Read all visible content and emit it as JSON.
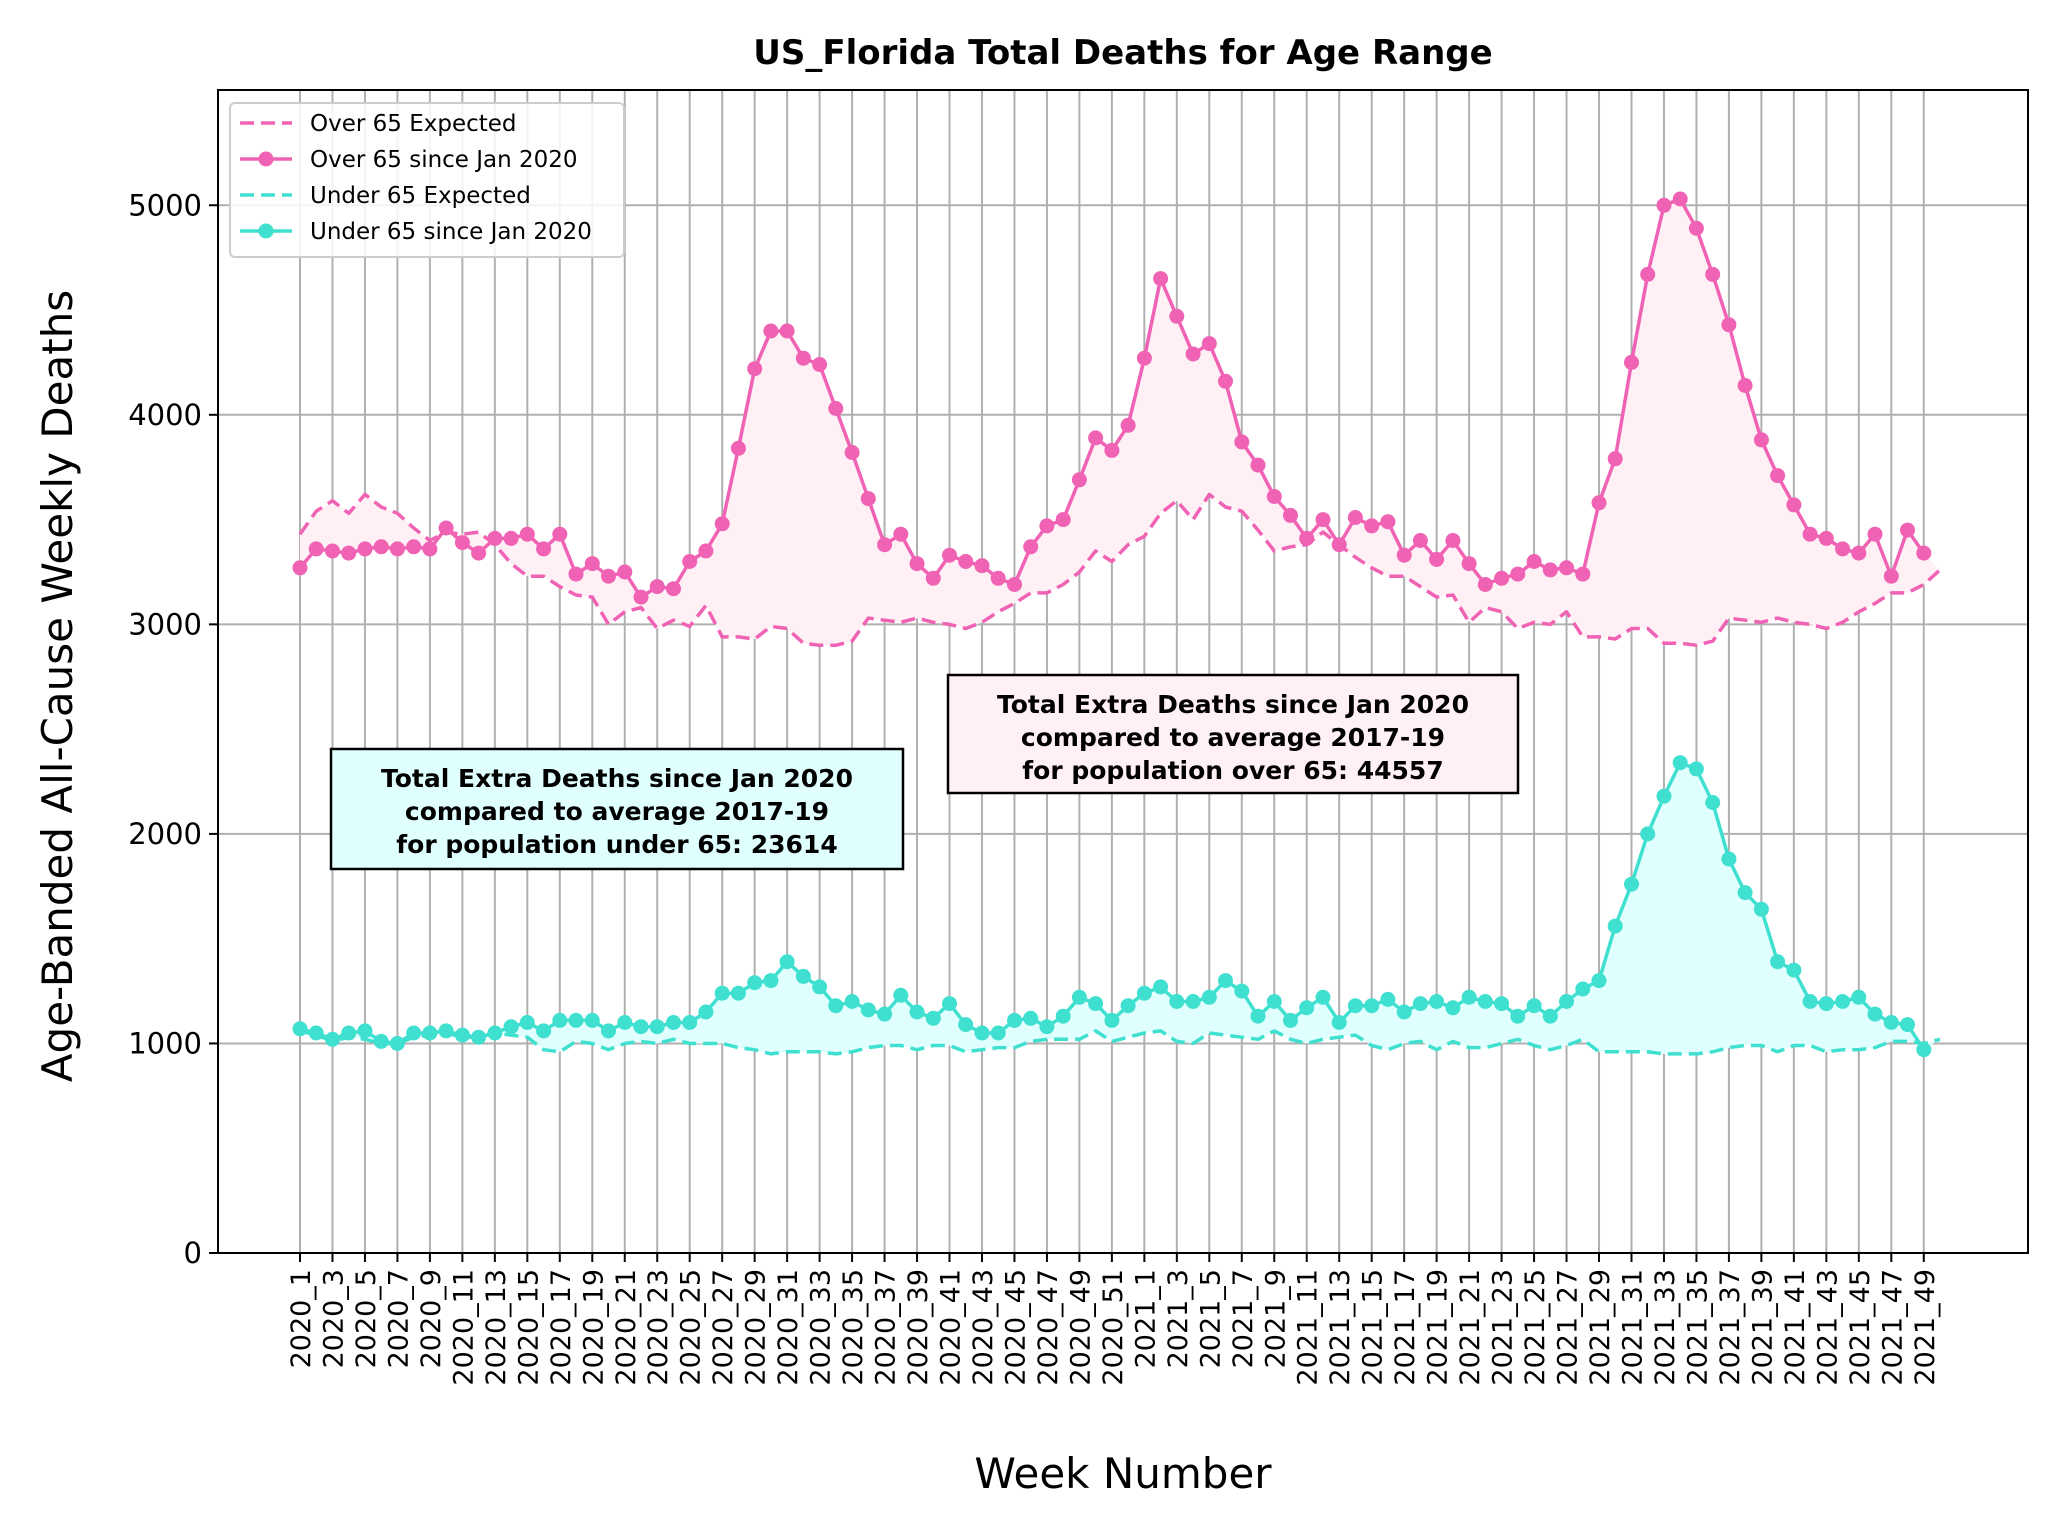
{
  "chart_data": {
    "type": "line",
    "title": "US_Florida Total Deaths for Age Range",
    "xlabel": "Week Number",
    "ylabel": "Age-Banded All-Cause Weekly Deaths",
    "ylim": [
      0,
      5550
    ],
    "yticks": [
      0,
      1000,
      2000,
      3000,
      4000,
      5000
    ],
    "grid": true,
    "legend_position": "top-left",
    "xtick_labels": [
      "2020_1",
      "2020_3",
      "2020_5",
      "2020_7",
      "2020_9",
      "2020_11",
      "2020_13",
      "2020_15",
      "2020_17",
      "2020_19",
      "2020_21",
      "2020_23",
      "2020_25",
      "2020_27",
      "2020_29",
      "2020_31",
      "2020_33",
      "2020_35",
      "2020_37",
      "2020_39",
      "2020_41",
      "2020_43",
      "2020_45",
      "2020_47",
      "2020_49",
      "2020_51",
      "2021_1",
      "2021_3",
      "2021_5",
      "2021_7",
      "2021_9",
      "2021_11",
      "2021_13",
      "2021_15",
      "2021_17",
      "2021_19",
      "2021_21",
      "2021_23",
      "2021_25",
      "2021_27",
      "2021_29",
      "2021_31",
      "2021_33",
      "2021_35",
      "2021_37",
      "2021_39",
      "2021_41",
      "2021_43",
      "2021_45",
      "2021_47",
      "2021_49"
    ],
    "series": [
      {
        "name": "Over 65 Expected",
        "style": "dashed",
        "color": "#f062b4",
        "values": [
          3430,
          3540,
          3590,
          3530,
          3620,
          3560,
          3530,
          3460,
          3400,
          3440,
          3430,
          3440,
          3380,
          3290,
          3230,
          3230,
          3180,
          3140,
          3130,
          3000,
          3060,
          3080,
          2980,
          3020,
          2990,
          3090,
          2940,
          2940,
          2930,
          2990,
          2980,
          2910,
          2900,
          2900,
          2920,
          3030,
          3020,
          3010,
          3030,
          3010,
          3000,
          2980,
          3010,
          3060,
          3100,
          3150,
          3150,
          3190,
          3250,
          3350,
          3300,
          3380,
          3420,
          3530,
          3590,
          3500,
          3620,
          3560,
          3540,
          3450,
          3350,
          3370,
          3380,
          3440,
          3380,
          3320,
          3270,
          3230,
          3230,
          3180,
          3130,
          3140,
          3010,
          3080,
          3060,
          2980,
          3010,
          3000,
          3060,
          2940,
          2940,
          2930,
          2980,
          2980,
          2910,
          2910,
          2900,
          2920,
          3030,
          3020,
          3010,
          3030,
          3010,
          3000,
          2980,
          3010,
          3060,
          3100,
          3150,
          3150,
          3190,
          3260
        ]
      },
      {
        "name": "Over 65 since Jan 2020",
        "style": "solid-markers",
        "color": "#f062b4",
        "values": [
          3270,
          3360,
          3350,
          3340,
          3360,
          3370,
          3360,
          3370,
          3360,
          3460,
          3390,
          3340,
          3410,
          3410,
          3430,
          3360,
          3430,
          3240,
          3290,
          3230,
          3250,
          3130,
          3180,
          3170,
          3300,
          3350,
          3480,
          3840,
          4220,
          4400,
          4400,
          4270,
          4240,
          4030,
          3820,
          3600,
          3380,
          3430,
          3290,
          3220,
          3330,
          3300,
          3280,
          3220,
          3190,
          3370,
          3470,
          3500,
          3690,
          3890,
          3830,
          3950,
          4270,
          4650,
          4470,
          4290,
          4340,
          4160,
          3870,
          3760,
          3610,
          3520,
          3410,
          3500,
          3380,
          3510,
          3470,
          3490,
          3330,
          3400,
          3310,
          3400,
          3290,
          3190,
          3220,
          3240,
          3300,
          3260,
          3270,
          3240,
          3580,
          3790,
          4250,
          4670,
          5000,
          5030,
          4890,
          4670,
          4430,
          4140,
          3880,
          3710,
          3570,
          3430,
          3410,
          3360,
          3340,
          3430,
          3230,
          3450,
          3340
        ]
      },
      {
        "name": "Under 65 Expected",
        "style": "dashed",
        "color": "#40e0d0",
        "values": [
          1060,
          1040,
          1010,
          1030,
          1020,
          1000,
          1000,
          1030,
          1040,
          1050,
          1030,
          1030,
          1050,
          1040,
          1030,
          970,
          960,
          1010,
          1000,
          970,
          1000,
          1010,
          1000,
          1020,
          1000,
          1000,
          1000,
          980,
          970,
          950,
          960,
          960,
          960,
          950,
          960,
          980,
          990,
          990,
          970,
          990,
          990,
          960,
          970,
          980,
          980,
          1010,
          1020,
          1020,
          1020,
          1060,
          1010,
          1030,
          1050,
          1060,
          1010,
          1000,
          1050,
          1040,
          1030,
          1020,
          1060,
          1020,
          1000,
          1020,
          1030,
          1040,
          990,
          970,
          1000,
          1010,
          970,
          1010,
          980,
          980,
          1000,
          1020,
          990,
          970,
          990,
          1020,
          960,
          960,
          960,
          960,
          950,
          950,
          950,
          960,
          980,
          990,
          990,
          960,
          990,
          990,
          960,
          970,
          970,
          980,
          1010,
          1010,
          1000,
          1020
        ]
      },
      {
        "name": "Under 65 since Jan 2020",
        "style": "solid-markers",
        "color": "#40e0d0",
        "values": [
          1070,
          1050,
          1020,
          1050,
          1060,
          1010,
          1000,
          1050,
          1050,
          1060,
          1040,
          1030,
          1050,
          1080,
          1100,
          1060,
          1110,
          1110,
          1110,
          1060,
          1100,
          1080,
          1080,
          1100,
          1100,
          1150,
          1240,
          1240,
          1290,
          1300,
          1390,
          1320,
          1270,
          1180,
          1200,
          1160,
          1140,
          1230,
          1150,
          1120,
          1190,
          1090,
          1050,
          1050,
          1110,
          1120,
          1080,
          1130,
          1220,
          1190,
          1110,
          1180,
          1240,
          1270,
          1200,
          1200,
          1220,
          1300,
          1250,
          1130,
          1200,
          1110,
          1170,
          1220,
          1100,
          1180,
          1180,
          1210,
          1150,
          1190,
          1200,
          1170,
          1220,
          1200,
          1190,
          1130,
          1180,
          1130,
          1200,
          1260,
          1300,
          1560,
          1760,
          2000,
          2180,
          2340,
          2310,
          2150,
          1880,
          1720,
          1640,
          1390,
          1350,
          1200,
          1190,
          1200,
          1220,
          1140,
          1100,
          1090,
          970
        ]
      }
    ],
    "annotations": [
      {
        "name": "annotation-under-65",
        "lines": [
          "Total Extra Deaths since Jan 2020",
          "compared to average 2017-19",
          "for population under 65: 23614"
        ],
        "color": "#e0ffff"
      },
      {
        "name": "annotation-over-65",
        "lines": [
          "Total Extra Deaths since Jan 2020",
          "compared to average 2017-19",
          "for population over 65: 44557"
        ],
        "color": "#fff0f5"
      }
    ]
  }
}
